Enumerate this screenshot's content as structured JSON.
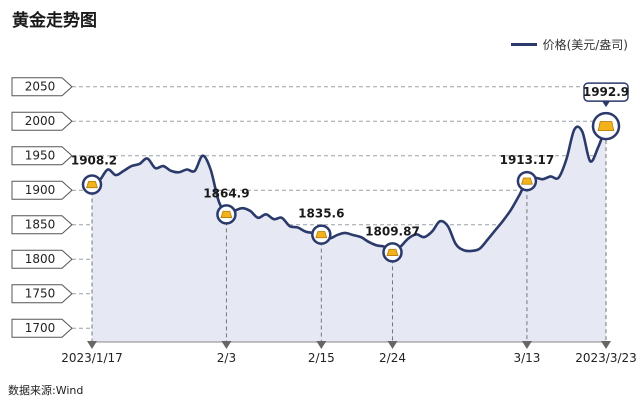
{
  "title": "黄金走势图",
  "legend": {
    "label": "价格(美元/盎司)"
  },
  "source": "数据来源:Wind",
  "colors": {
    "line": "#2b3a6b",
    "area": "#e6e9f4",
    "marker_ring": "#2b3a6b",
    "marker_gold": "#f2b21b",
    "grid": "#9aa0a8"
  },
  "chart_data": {
    "type": "area",
    "title": "黄金走势图",
    "series_name": "价格(美元/盎司)",
    "ylim": [
      1680,
      2080
    ],
    "yticks": [
      1700,
      1750,
      1800,
      1850,
      1900,
      1950,
      2000,
      2050
    ],
    "xrange": [
      0,
      65
    ],
    "xticks": [
      {
        "x": 0,
        "label": "2023/1/17"
      },
      {
        "x": 17,
        "label": "2/3"
      },
      {
        "x": 29,
        "label": "2/15"
      },
      {
        "x": 38,
        "label": "2/24"
      },
      {
        "x": 55,
        "label": "3/13"
      },
      {
        "x": 65,
        "label": "2023/3/23"
      }
    ],
    "series": [
      [
        0,
        1908.2
      ],
      [
        1,
        1915
      ],
      [
        2,
        1930
      ],
      [
        3,
        1922
      ],
      [
        4,
        1928
      ],
      [
        5,
        1935
      ],
      [
        6,
        1938
      ],
      [
        7,
        1946
      ],
      [
        8,
        1932
      ],
      [
        9,
        1935
      ],
      [
        10,
        1928
      ],
      [
        11,
        1926
      ],
      [
        12,
        1930
      ],
      [
        13,
        1928
      ],
      [
        14,
        1950
      ],
      [
        15,
        1930
      ],
      [
        16,
        1885
      ],
      [
        17,
        1864.9
      ],
      [
        18,
        1870
      ],
      [
        19,
        1874
      ],
      [
        20,
        1870
      ],
      [
        21,
        1860
      ],
      [
        22,
        1865
      ],
      [
        23,
        1858
      ],
      [
        24,
        1860
      ],
      [
        25,
        1848
      ],
      [
        26,
        1846
      ],
      [
        27,
        1840
      ],
      [
        28,
        1838
      ],
      [
        29,
        1835.6
      ],
      [
        30,
        1830
      ],
      [
        31,
        1835
      ],
      [
        32,
        1838
      ],
      [
        33,
        1835
      ],
      [
        34,
        1832
      ],
      [
        35,
        1825
      ],
      [
        36,
        1820
      ],
      [
        37,
        1818
      ],
      [
        38,
        1809.87
      ],
      [
        39,
        1818
      ],
      [
        40,
        1830
      ],
      [
        41,
        1836
      ],
      [
        42,
        1832
      ],
      [
        43,
        1840
      ],
      [
        44,
        1855
      ],
      [
        45,
        1848
      ],
      [
        46,
        1822
      ],
      [
        47,
        1813
      ],
      [
        48,
        1812
      ],
      [
        49,
        1815
      ],
      [
        50,
        1828
      ],
      [
        51,
        1842
      ],
      [
        52,
        1856
      ],
      [
        53,
        1872
      ],
      [
        54,
        1892
      ],
      [
        55,
        1913.17
      ],
      [
        56,
        1918
      ],
      [
        57,
        1916
      ],
      [
        58,
        1920
      ],
      [
        59,
        1918
      ],
      [
        60,
        1945
      ],
      [
        61,
        1988
      ],
      [
        62,
        1985
      ],
      [
        63,
        1942
      ],
      [
        64,
        1962
      ],
      [
        65,
        1992.9
      ]
    ],
    "annotations": [
      {
        "x": 0,
        "y": 1908.2,
        "label": "1908.2"
      },
      {
        "x": 17,
        "y": 1864.9,
        "label": "1864.9"
      },
      {
        "x": 29,
        "y": 1835.6,
        "label": "1835.6"
      },
      {
        "x": 38,
        "y": 1809.87,
        "label": "1809.87"
      },
      {
        "x": 55,
        "y": 1913.17,
        "label": "1913.17"
      },
      {
        "x": 65,
        "y": 1992.9,
        "label": "1992.9"
      }
    ]
  }
}
